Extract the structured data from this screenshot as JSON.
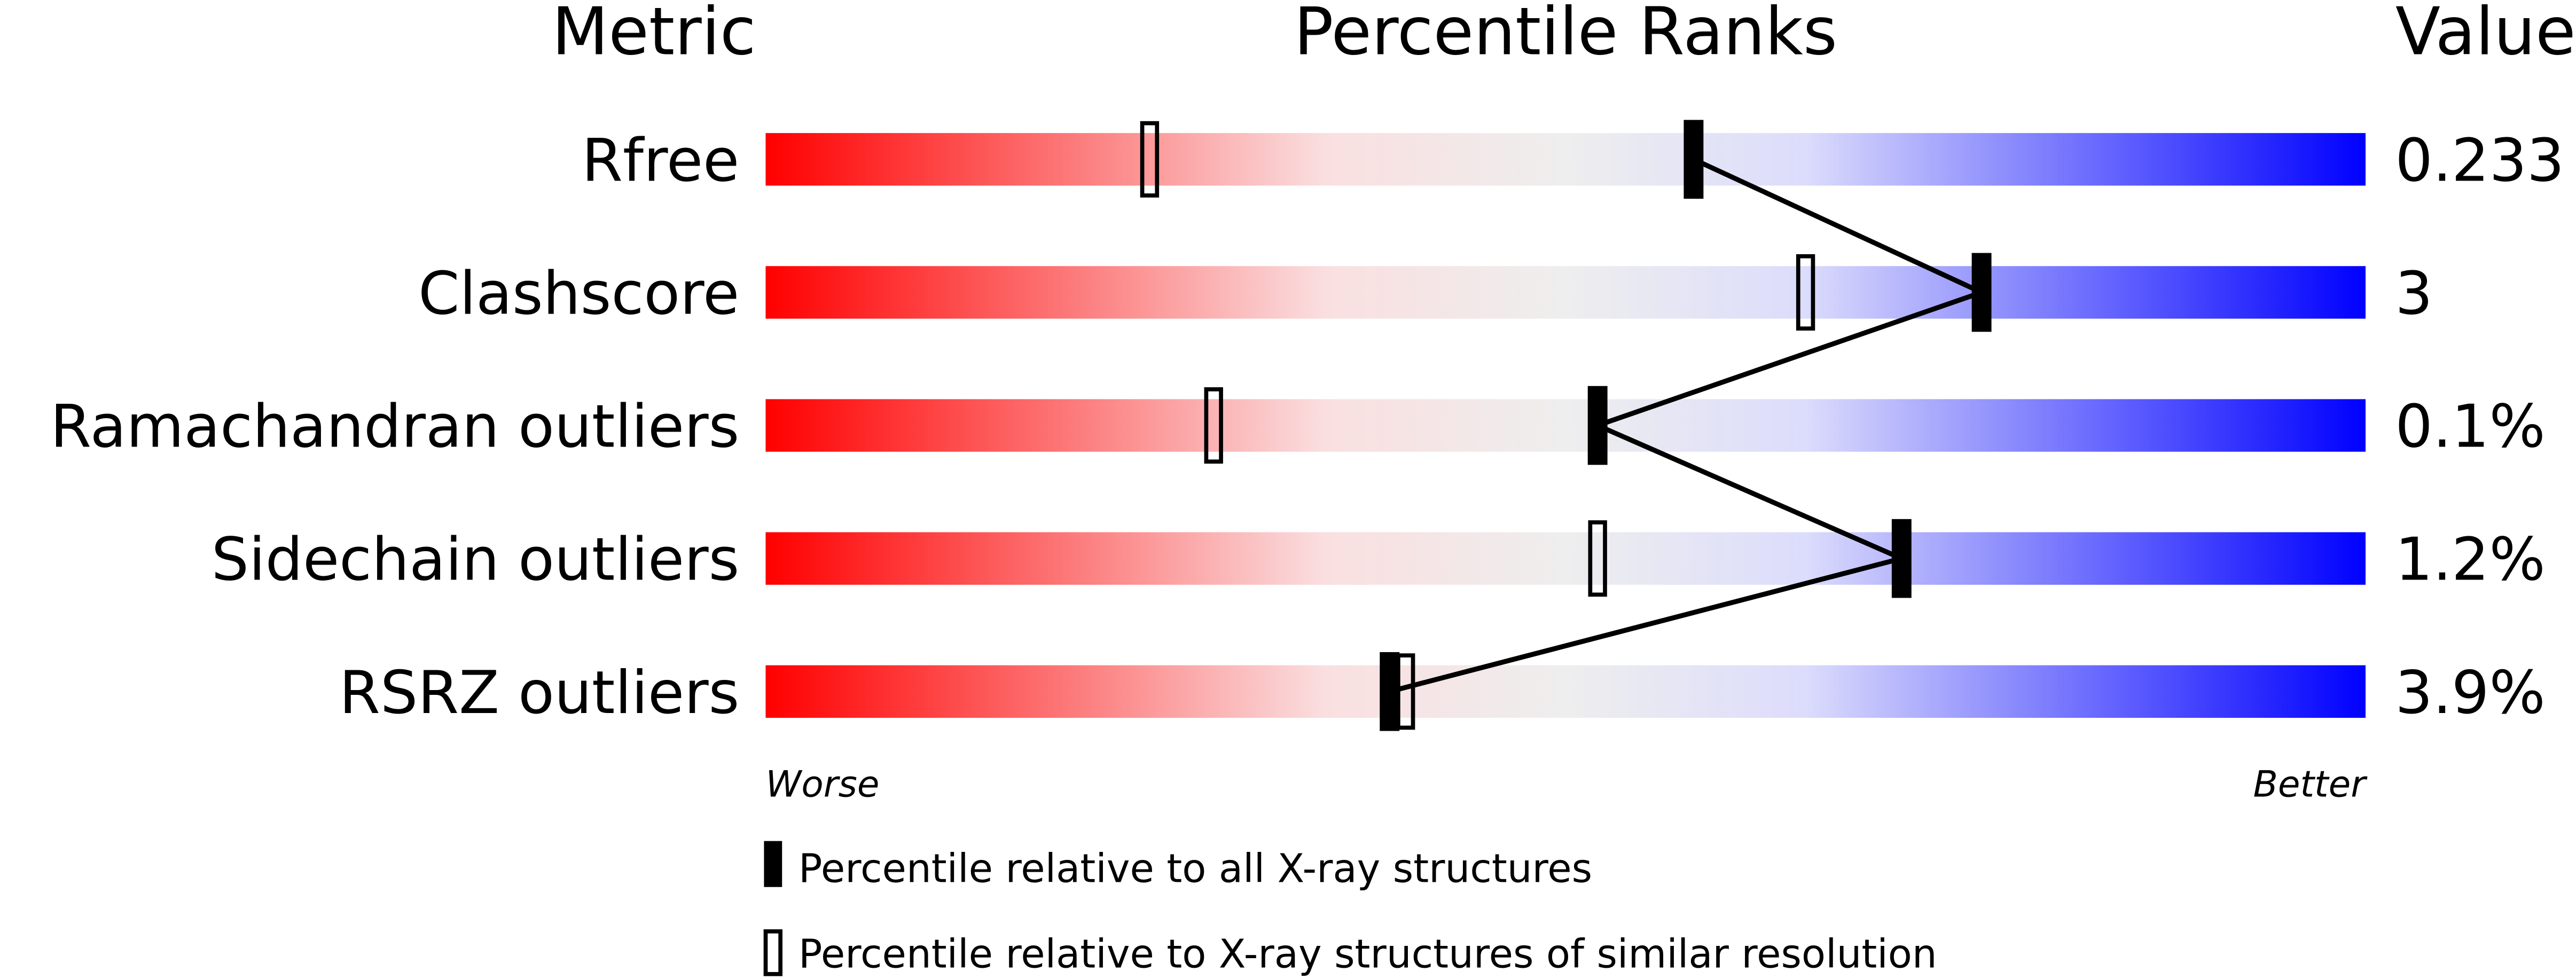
{
  "chart_data": {
    "type": "percentile-bar",
    "headers": {
      "metric": "Metric",
      "title": "Percentile Ranks",
      "value": "Value"
    },
    "xlim": [
      0,
      100
    ],
    "axis_labels": {
      "left": "Worse",
      "right": "Better"
    },
    "gradient_colors": [
      "#ff0000",
      "#fadfe0",
      "#eeeeee",
      "#dcdcfc",
      "#0000ff"
    ],
    "metrics": [
      {
        "name": "Rfree",
        "value": "0.233",
        "percentile_all": 58,
        "percentile_similar": 24
      },
      {
        "name": "Clashscore",
        "value": "3",
        "percentile_all": 76,
        "percentile_similar": 65
      },
      {
        "name": "Ramachandran outliers",
        "value": "0.1%",
        "percentile_all": 52,
        "percentile_similar": 28
      },
      {
        "name": "Sidechain outliers",
        "value": "1.2%",
        "percentile_all": 71,
        "percentile_similar": 52
      },
      {
        "name": "RSRZ outliers",
        "value": "3.9%",
        "percentile_all": 39,
        "percentile_similar": 40
      }
    ],
    "legend": [
      {
        "marker": "filled",
        "label": "Percentile relative to all X-ray structures"
      },
      {
        "marker": "open",
        "label": "Percentile relative to X-ray structures of similar resolution"
      }
    ]
  }
}
